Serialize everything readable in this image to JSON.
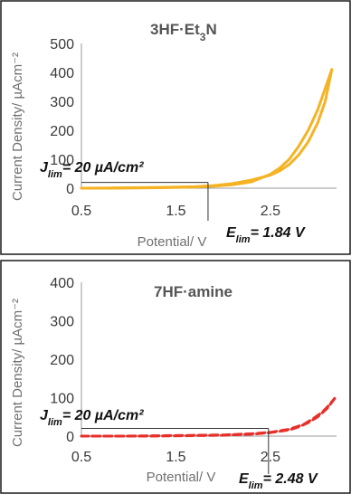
{
  "chart_data": [
    {
      "type": "line",
      "title": "3HF·Et₃N",
      "title_parts": {
        "base": "3HF·Et",
        "sub": "3",
        "tail": "N"
      },
      "xlabel": "Potential/ V",
      "ylabel": "Current Density/ µAcm⁻²",
      "xlim": [
        0.5,
        3.2
      ],
      "ylim": [
        0,
        500
      ],
      "x_ticks": [
        "0.5",
        "1.5",
        "2.5"
      ],
      "x_tick_values": [
        0.5,
        1.5,
        2.5
      ],
      "y_ticks": [
        "0",
        "100",
        "200",
        "300",
        "400",
        "500"
      ],
      "y_tick_values": [
        0,
        100,
        200,
        300,
        400,
        500
      ],
      "color": "#f5b324",
      "line_style": "solid",
      "grid": false,
      "series": [
        {
          "x": [
            0.5,
            0.8,
            1.1,
            1.4,
            1.7,
            1.9,
            2.1,
            2.3,
            2.5,
            2.6,
            2.7,
            2.8,
            2.9,
            3.0,
            3.08,
            3.15
          ],
          "y": [
            0,
            1,
            2,
            3,
            5,
            9,
            16,
            28,
            45,
            60,
            82,
            115,
            160,
            225,
            300,
            410
          ]
        },
        {
          "x": [
            3.15,
            3.08,
            3.0,
            2.9,
            2.8,
            2.7,
            2.6,
            2.5,
            2.3,
            2.1,
            1.9,
            1.7,
            1.4,
            1.1,
            0.8,
            0.5
          ],
          "y": [
            410,
            345,
            270,
            200,
            145,
            100,
            70,
            48,
            22,
            12,
            7,
            4,
            2,
            1,
            0,
            0
          ]
        }
      ],
      "annotation": {
        "j_main": "J",
        "j_sub": "lim",
        "j_text": "= 20 µA/cm²",
        "j_value": 20,
        "e_main": "E",
        "e_sub": "lim",
        "e_text": "= 1.84 V",
        "e_value": 1.84
      }
    },
    {
      "type": "line",
      "title": "7HF·amine",
      "xlabel": "Potential/ V",
      "ylabel": "Current Density/ µAcm⁻²",
      "xlim": [
        0.5,
        3.2
      ],
      "ylim": [
        0,
        400
      ],
      "x_ticks": [
        "0.5",
        "1.5",
        "2.5"
      ],
      "x_tick_values": [
        0.5,
        1.5,
        2.5
      ],
      "y_ticks": [
        "0",
        "100",
        "200",
        "300",
        "400"
      ],
      "y_tick_values": [
        0,
        100,
        200,
        300,
        400
      ],
      "color": "#e8302b",
      "line_style": "dashed",
      "grid": false,
      "series": [
        {
          "x": [
            0.5,
            0.9,
            1.3,
            1.7,
            2.0,
            2.3,
            2.5,
            2.7,
            2.85,
            2.95,
            3.05,
            3.12,
            3.18
          ],
          "y": [
            0,
            0,
            1,
            2,
            3,
            6,
            10,
            18,
            30,
            45,
            62,
            80,
            98
          ]
        },
        {
          "x": [
            3.18,
            3.1,
            3.0,
            2.9,
            2.8,
            2.7,
            2.5,
            2.3,
            2.0,
            1.6,
            1.2,
            0.8,
            0.5
          ],
          "y": [
            98,
            72,
            50,
            35,
            24,
            16,
            9,
            5,
            2,
            1,
            0,
            0,
            0
          ]
        }
      ],
      "annotation": {
        "j_main": "J",
        "j_sub": "lim",
        "j_text": "= 20 µA/cm²",
        "j_value": 20,
        "e_main": "E",
        "e_sub": "lim",
        "e_text": "= 2.48 V",
        "e_value": 2.48
      }
    }
  ]
}
